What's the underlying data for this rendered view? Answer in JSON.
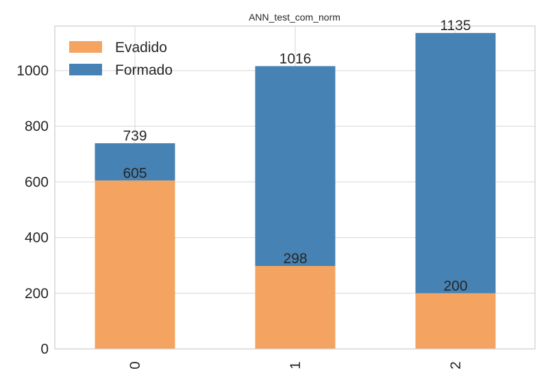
{
  "chart_data": {
    "type": "bar",
    "stacked": true,
    "title": "ANN_test_com_norm",
    "xlabel": "",
    "ylabel": "",
    "categories": [
      "0",
      "1",
      "2"
    ],
    "series": [
      {
        "name": "Evadido",
        "values": [
          605,
          298,
          200
        ],
        "color": "#f4a460"
      },
      {
        "name": "Formado",
        "values": [
          134,
          718,
          935
        ],
        "color": "#4682b4"
      }
    ],
    "bar_labels": {
      "Evadido": [
        "605",
        "298",
        "200"
      ],
      "Formado": [
        "739",
        "1016",
        "1135"
      ]
    },
    "ylim": [
      0,
      1160
    ],
    "yticks": [
      0,
      200,
      400,
      600,
      800,
      1000
    ],
    "grid": true,
    "legend_position": "top-left",
    "x_tick_rotation": "vertical"
  }
}
